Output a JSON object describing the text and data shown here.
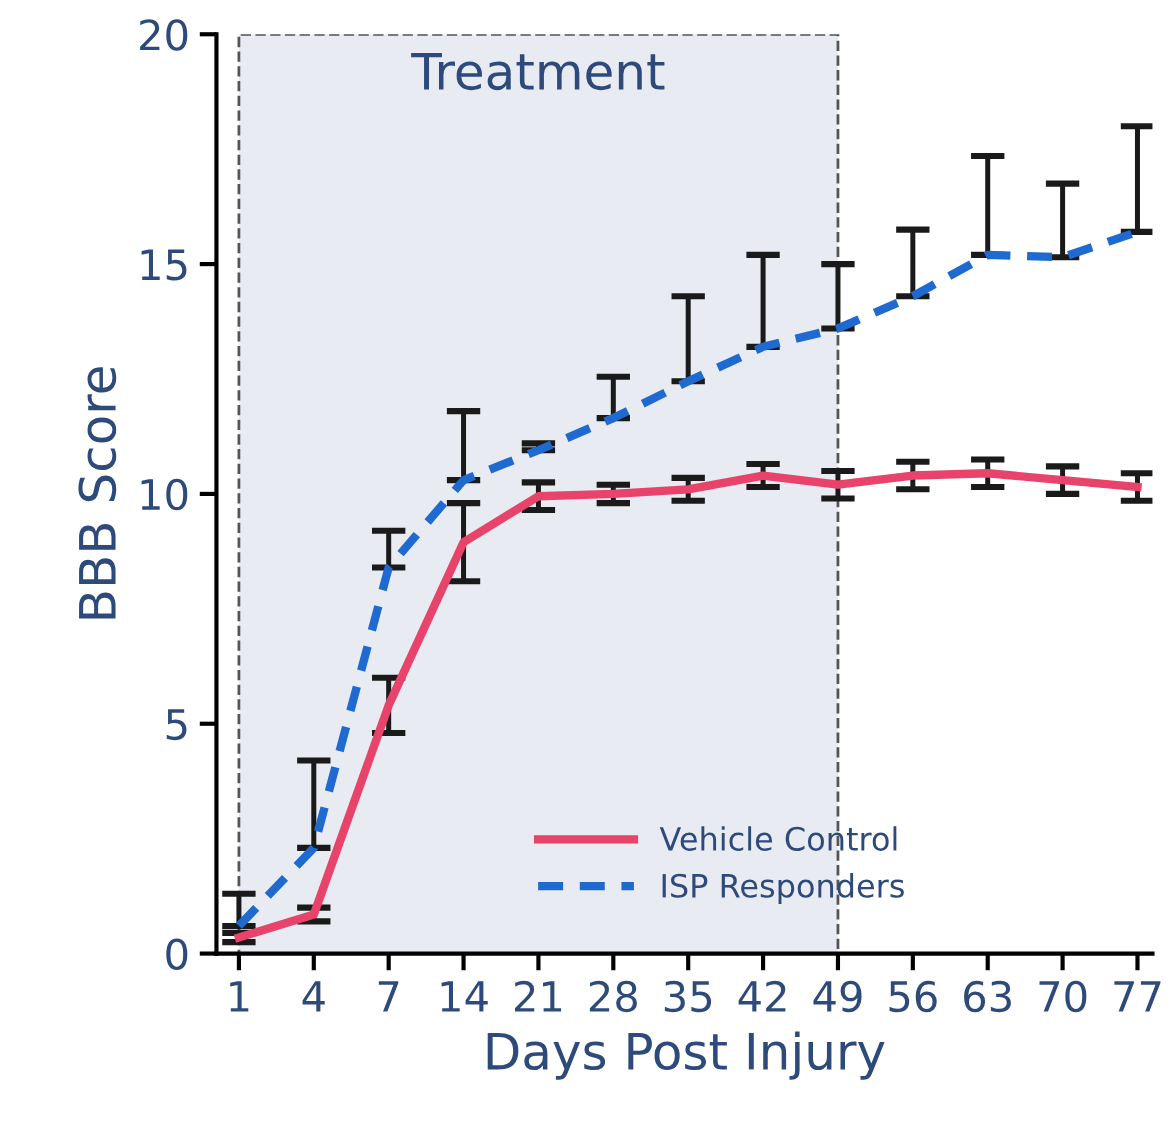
{
  "chart_data": {
    "type": "line",
    "xlabel": "Days Post Injury",
    "ylabel": "BBB Score",
    "categories": [
      "1",
      "4",
      "7",
      "14",
      "21",
      "28",
      "35",
      "42",
      "49",
      "56",
      "63",
      "70",
      "77"
    ],
    "ylim": [
      0,
      20
    ],
    "yticks": [
      0,
      5,
      10,
      15,
      20
    ],
    "grid": false,
    "legend": "bottom right",
    "marker": "none",
    "series": [
      {
        "name": "Vehicle Control",
        "color": "#e8436a",
        "line_style": "solid",
        "values": [
          0.35,
          0.85,
          5.4,
          8.95,
          9.95,
          10.0,
          10.1,
          10.4,
          10.2,
          10.4,
          10.45,
          10.3,
          10.15
        ],
        "errors": [
          0.1,
          0.15,
          0.6,
          0.85,
          0.3,
          0.2,
          0.25,
          0.25,
          0.3,
          0.3,
          0.3,
          0.3,
          0.3
        ]
      },
      {
        "name": "ISP Responders",
        "color": "#1f6ad0",
        "line_style": "dashed",
        "values": [
          0.6,
          2.3,
          8.4,
          10.3,
          10.95,
          11.65,
          12.45,
          13.2,
          13.6,
          14.3,
          15.2,
          15.15,
          15.7
        ],
        "errors": [
          [
            0.6,
            1.3
          ],
          [
            2.3,
            4.2
          ],
          [
            8.4,
            9.2
          ],
          [
            10.3,
            11.8
          ],
          [
            10.95,
            11.1
          ],
          [
            11.65,
            12.55
          ],
          [
            12.45,
            14.3
          ],
          [
            13.2,
            15.2
          ],
          [
            13.6,
            15.0
          ],
          [
            14.3,
            15.75
          ],
          [
            15.2,
            17.35
          ],
          [
            15.15,
            16.75
          ],
          [
            15.7,
            18.0
          ]
        ]
      }
    ],
    "bands": [
      {
        "axis": "x",
        "from": "1",
        "to": "49",
        "label": "Treatment",
        "color": "#e8ebf1"
      }
    ]
  }
}
